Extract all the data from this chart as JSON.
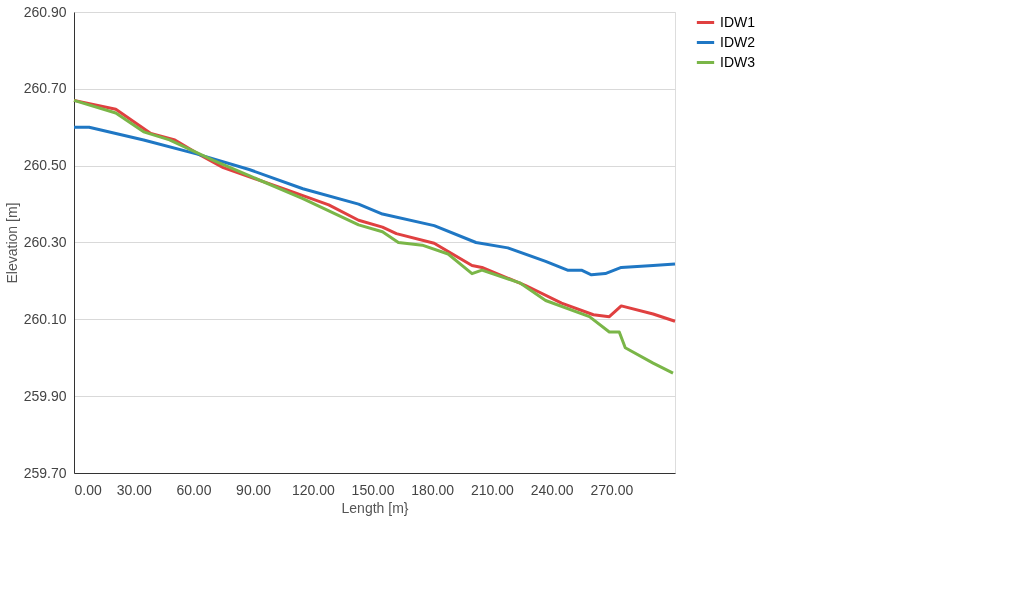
{
  "chart_data": {
    "type": "line",
    "xlabel": "Length [m}",
    "ylabel": "Elevation [m]",
    "xlim": [
      0,
      302
    ],
    "xticks": [
      {
        "value": 0,
        "label": "0.00"
      },
      {
        "value": 30,
        "label": "30.00"
      },
      {
        "value": 60,
        "label": "60.00"
      },
      {
        "value": 90,
        "label": "90.00"
      },
      {
        "value": 120,
        "label": "120.00"
      },
      {
        "value": 150,
        "label": "150.00"
      },
      {
        "value": 180,
        "label": "180.00"
      },
      {
        "value": 210,
        "label": "210.00"
      },
      {
        "value": 240,
        "label": "240.00"
      },
      {
        "value": 270,
        "label": "270.00"
      }
    ],
    "ylim": [
      259.7,
      260.9
    ],
    "yticks": [
      {
        "value": 259.7,
        "label": "259.70"
      },
      {
        "value": 259.9,
        "label": "259.90"
      },
      {
        "value": 260.1,
        "label": "260.10"
      },
      {
        "value": 260.3,
        "label": "260.30"
      },
      {
        "value": 260.5,
        "label": "260.50"
      },
      {
        "value": 260.7,
        "label": "260.70"
      },
      {
        "value": 260.9,
        "label": "260.90"
      }
    ],
    "grid": "y",
    "legend": "right",
    "marker": "none",
    "line_style": "solid",
    "series": [
      {
        "name": "IDW1",
        "color": "#e04040",
        "x": [
          0,
          21,
          38.6,
          50.7,
          64,
          75,
          107,
          128,
          143,
          155,
          162,
          181,
          200,
          205,
          227,
          245,
          261,
          269,
          275,
          291,
          302
        ],
        "values": [
          260.67,
          260.647,
          260.584,
          260.567,
          260.526,
          260.495,
          260.437,
          260.398,
          260.358,
          260.34,
          260.323,
          260.298,
          260.24,
          260.235,
          260.188,
          260.142,
          260.112,
          260.107,
          260.135,
          260.114,
          260.095
        ]
      },
      {
        "name": "IDW2",
        "color": "#1f77c4",
        "x": [
          0,
          7.6,
          35,
          62,
          88,
          115,
          143,
          155,
          181,
          202,
          218,
          237,
          248,
          255,
          260,
          267,
          275,
          291,
          302
        ],
        "values": [
          260.6,
          260.6,
          260.567,
          260.53,
          260.49,
          260.44,
          260.4,
          260.374,
          260.344,
          260.3,
          260.286,
          260.251,
          260.228,
          260.228,
          260.216,
          260.219,
          260.235,
          260.24,
          260.244
        ]
      },
      {
        "name": "IDW3",
        "color": "#7ab648",
        "x": [
          0,
          21,
          35,
          48,
          70,
          88,
          115,
          143,
          155,
          163,
          175,
          188,
          200,
          205,
          224,
          237,
          259,
          269,
          274,
          277,
          291,
          301
        ],
        "values": [
          260.67,
          260.637,
          260.588,
          260.567,
          260.514,
          260.474,
          260.414,
          260.346,
          260.328,
          260.3,
          260.293,
          260.27,
          260.219,
          260.228,
          260.195,
          260.149,
          260.107,
          260.067,
          260.067,
          260.026,
          259.986,
          259.96
        ]
      }
    ]
  }
}
